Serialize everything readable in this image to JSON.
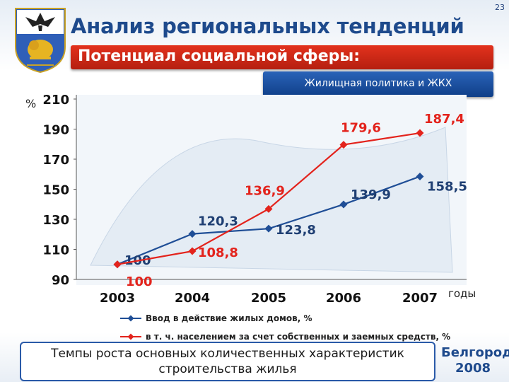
{
  "slide_number": "23",
  "header": {
    "title": "Анализ региональных тенденций",
    "subtitle": "Потенциал социальной сферы:",
    "topic": "Жилищная политика и ЖКХ"
  },
  "footer": {
    "caption_line1": "Темпы роста основных количественных характеристик",
    "caption_line2": "строительства жилья",
    "city": "Белгород",
    "year": "2008"
  },
  "chart_data": {
    "type": "line",
    "ylabel": "%",
    "xlabel": "годы",
    "categories": [
      "2003",
      "2004",
      "2005",
      "2006",
      "2007"
    ],
    "ylim": [
      90,
      210
    ],
    "yticks": [
      90,
      110,
      130,
      150,
      170,
      190,
      210
    ],
    "grid": false,
    "legend_position": "bottom",
    "series": [
      {
        "name": "Ввод в действие жилых домов, %",
        "color": "#1f4e96",
        "marker": "diamond",
        "values": [
          100,
          120.3,
          123.8,
          139.9,
          158.5
        ],
        "labels": [
          "100",
          "120,3",
          "123,8",
          "139,9",
          "158,5"
        ]
      },
      {
        "name": "в т. ч. населением за счет собственных и заемных средств, %",
        "color": "#e3231c",
        "marker": "diamond",
        "values": [
          100,
          108.8,
          136.9,
          179.6,
          187.4
        ],
        "labels": [
          "100",
          "108,8",
          "136,9",
          "179,6",
          "187,4"
        ]
      }
    ]
  }
}
